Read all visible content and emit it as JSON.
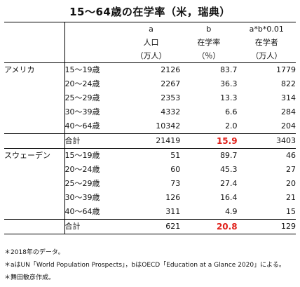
{
  "title": "15～64歳の在学率（米，瑞典）",
  "header": {
    "letters": [
      "a",
      "b",
      "a*b*0.01"
    ],
    "names": [
      "人口",
      "在学率",
      "在学者"
    ],
    "units": [
      "（万人）",
      "（％）",
      "（万人）"
    ]
  },
  "groups": [
    {
      "country": "アメリカ",
      "rows": [
        {
          "age": "15～19歳",
          "pop": "2126",
          "rate": "83.7",
          "students": "1779"
        },
        {
          "age": "20～24歳",
          "pop": "2267",
          "rate": "36.3",
          "students": "822"
        },
        {
          "age": "25～29歳",
          "pop": "2353",
          "rate": "13.3",
          "students": "314"
        },
        {
          "age": "30～39歳",
          "pop": "4332",
          "rate": "6.6",
          "students": "284"
        },
        {
          "age": "40～64歳",
          "pop": "10342",
          "rate": "2.0",
          "students": "204"
        }
      ],
      "total": {
        "label": "合計",
        "pop": "21419",
        "rate": "15.9",
        "students": "3403"
      }
    },
    {
      "country": "スウェーデン",
      "rows": [
        {
          "age": "15～19歳",
          "pop": "51",
          "rate": "89.7",
          "students": "46"
        },
        {
          "age": "20～24歳",
          "pop": "60",
          "rate": "45.3",
          "students": "27"
        },
        {
          "age": "25～29歳",
          "pop": "73",
          "rate": "27.4",
          "students": "20"
        },
        {
          "age": "30～39歳",
          "pop": "126",
          "rate": "16.4",
          "students": "21"
        },
        {
          "age": "40～64歳",
          "pop": "311",
          "rate": "4.9",
          "students": "15"
        }
      ],
      "total": {
        "label": "合計",
        "pop": "621",
        "rate": "20.8",
        "students": "129"
      }
    }
  ],
  "notes": [
    "＊2018年のデータ。",
    "＊aはUN「World Population Prospects」，bはOECD「Education at a Glance 2020」による。",
    "＊舞田敏彦作成。"
  ],
  "colors": {
    "highlight": "#e0211b",
    "text": "#111111"
  }
}
